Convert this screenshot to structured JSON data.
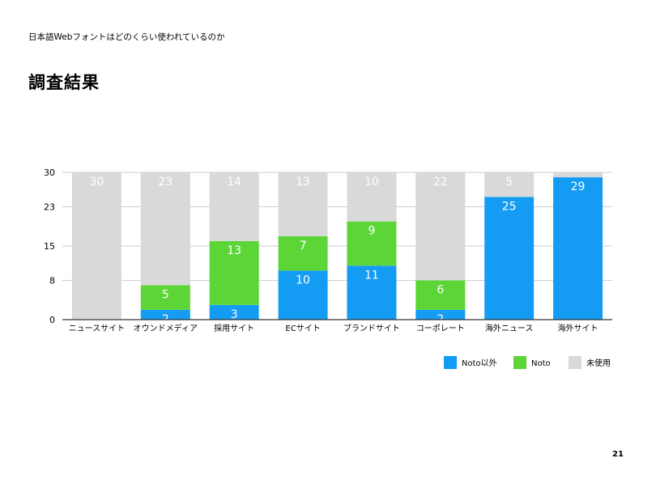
{
  "slide": {
    "subtitle": "日本語Webフォントはどのくらい使われているのか",
    "title": "調査結果",
    "page_number": "21"
  },
  "chart_data": {
    "type": "bar",
    "stacked": true,
    "title": "",
    "xlabel": "",
    "ylabel": "",
    "ylim": [
      0,
      30
    ],
    "yticks": [
      0,
      8,
      15,
      23,
      30
    ],
    "grid": true,
    "legend_position": "bottom-right",
    "categories": [
      "ニュースサイト",
      "オウンドメディア",
      "採用サイト",
      "ECサイト",
      "ブランドサイト",
      "コーポレート",
      "海外ニュース",
      "海外サイト"
    ],
    "series": [
      {
        "name": "Noto以外",
        "color": "#149cf4",
        "values": [
          0,
          2,
          3,
          10,
          11,
          2,
          25,
          29
        ],
        "labels": [
          "",
          "2",
          "3",
          "10",
          "11",
          "2",
          "25",
          "29"
        ]
      },
      {
        "name": "Noto",
        "color": "#5cd637",
        "values": [
          0,
          5,
          13,
          7,
          9,
          6,
          0,
          0
        ],
        "labels": [
          "",
          "5",
          "13",
          "7",
          "9",
          "6",
          "",
          ""
        ]
      },
      {
        "name": "未使用",
        "color": "#d9d9d9",
        "values": [
          30,
          23,
          14,
          13,
          10,
          22,
          5,
          1
        ],
        "labels": [
          "30",
          "23",
          "14",
          "13",
          "10",
          "22",
          "5",
          ""
        ]
      }
    ]
  }
}
